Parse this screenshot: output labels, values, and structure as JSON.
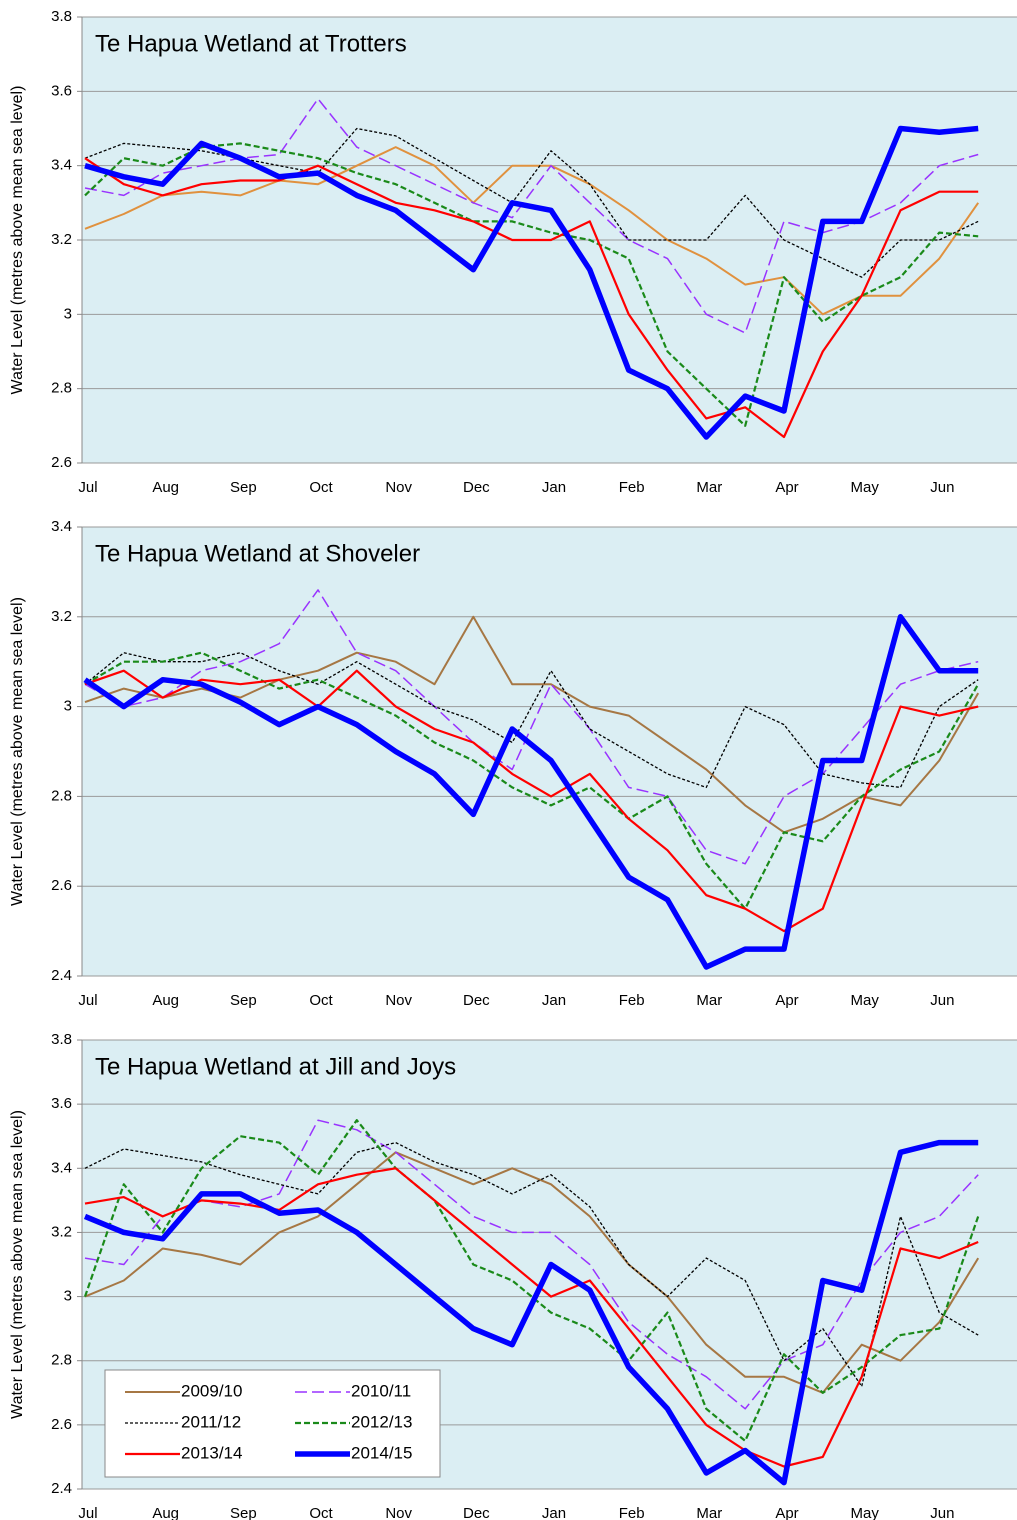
{
  "chart_data": [
    {
      "type": "line",
      "title": "Te Hapua Wetland at Trotters",
      "y_label": "Water Level (metres above mean sea level)",
      "categories": [
        "Jul",
        null,
        "Aug",
        null,
        "Sep",
        null,
        "Oct",
        null,
        "Nov",
        null,
        "Dec",
        null,
        "Jan",
        null,
        "Feb",
        null,
        "Mar",
        null,
        "Apr",
        null,
        "May",
        null,
        "Jun",
        null
      ],
      "ylim": [
        2.6,
        3.8
      ],
      "yticks": [
        2.6,
        2.8,
        3,
        3.2,
        3.4,
        3.6,
        3.8
      ],
      "grid": true,
      "series": [
        {
          "color": "#e0913e",
          "values": [
            3.23,
            3.27,
            3.32,
            3.33,
            3.32,
            3.36,
            3.35,
            3.4,
            3.45,
            3.4,
            3.3,
            3.4,
            3.4,
            3.35,
            3.28,
            3.2,
            3.15,
            3.08,
            3.1,
            3.0,
            3.05,
            3.05,
            3.15,
            3.3
          ]
        },
        {
          "color": "#9933ff",
          "values": [
            3.34,
            3.32,
            3.38,
            3.4,
            3.42,
            3.43,
            3.58,
            3.45,
            3.4,
            3.35,
            3.3,
            3.26,
            3.4,
            3.3,
            3.2,
            3.15,
            3.0,
            2.95,
            3.25,
            3.22,
            3.25,
            3.3,
            3.4,
            3.43
          ]
        },
        {
          "color": "#000000",
          "values": [
            3.42,
            3.46,
            3.45,
            3.44,
            3.42,
            3.4,
            3.38,
            3.5,
            3.48,
            3.42,
            3.36,
            3.3,
            3.44,
            3.35,
            3.2,
            3.2,
            3.2,
            3.32,
            3.2,
            3.15,
            3.1,
            3.2,
            3.2,
            3.25
          ]
        },
        {
          "color": "#1a8a1a",
          "values": [
            3.32,
            3.42,
            3.4,
            3.45,
            3.46,
            3.44,
            3.42,
            3.38,
            3.35,
            3.3,
            3.25,
            3.25,
            3.22,
            3.2,
            3.15,
            2.9,
            2.8,
            2.7,
            3.1,
            2.98,
            3.05,
            3.1,
            3.22,
            3.21
          ]
        },
        {
          "color": "#ff0000",
          "values": [
            3.42,
            3.35,
            3.32,
            3.35,
            3.36,
            3.36,
            3.4,
            3.35,
            3.3,
            3.28,
            3.25,
            3.2,
            3.2,
            3.25,
            3.0,
            2.85,
            2.72,
            2.75,
            2.67,
            2.9,
            3.05,
            3.28,
            3.33,
            3.33
          ]
        },
        {
          "color": "#0000ff",
          "values": [
            3.4,
            3.37,
            3.35,
            3.46,
            3.42,
            3.37,
            3.38,
            3.32,
            3.28,
            3.2,
            3.12,
            3.3,
            3.28,
            3.12,
            2.85,
            2.8,
            2.67,
            2.78,
            2.74,
            3.25,
            3.25,
            3.5,
            3.49,
            3.5
          ]
        }
      ]
    },
    {
      "type": "line",
      "title": "Te Hapua Wetland at Shoveler",
      "y_label": "Water Level (metres above mean sea level)",
      "categories": [
        "Jul",
        null,
        "Aug",
        null,
        "Sep",
        null,
        "Oct",
        null,
        "Nov",
        null,
        "Dec",
        null,
        "Jan",
        null,
        "Feb",
        null,
        "Mar",
        null,
        "Apr",
        null,
        "May",
        null,
        "Jun",
        null
      ],
      "ylim": [
        2.4,
        3.4
      ],
      "yticks": [
        2.4,
        2.6,
        2.8,
        3,
        3.2,
        3.4
      ],
      "grid": true,
      "series": [
        {
          "color": "#a67744",
          "values": [
            3.01,
            3.04,
            3.02,
            3.04,
            3.02,
            3.06,
            3.08,
            3.12,
            3.1,
            3.05,
            3.2,
            3.05,
            3.05,
            3.0,
            2.98,
            2.92,
            2.86,
            2.78,
            2.72,
            2.75,
            2.8,
            2.78,
            2.88,
            3.03
          ]
        },
        {
          "color": "#9933ff",
          "values": [
            3.05,
            3.0,
            3.02,
            3.08,
            3.1,
            3.14,
            3.26,
            3.12,
            3.08,
            3.0,
            2.92,
            2.86,
            3.05,
            2.95,
            2.82,
            2.8,
            2.68,
            2.65,
            2.8,
            2.85,
            2.95,
            3.05,
            3.08,
            3.1
          ]
        },
        {
          "color": "#000000",
          "values": [
            3.05,
            3.12,
            3.1,
            3.1,
            3.12,
            3.08,
            3.05,
            3.1,
            3.05,
            3.0,
            2.97,
            2.92,
            3.08,
            2.95,
            2.9,
            2.85,
            2.82,
            3.0,
            2.96,
            2.85,
            2.83,
            2.82,
            3.0,
            3.06
          ]
        },
        {
          "color": "#1a8a1a",
          "values": [
            3.05,
            3.1,
            3.1,
            3.12,
            3.08,
            3.04,
            3.06,
            3.02,
            2.98,
            2.92,
            2.88,
            2.82,
            2.78,
            2.82,
            2.75,
            2.8,
            2.65,
            2.55,
            2.72,
            2.7,
            2.8,
            2.86,
            2.9,
            3.05
          ]
        },
        {
          "color": "#ff0000",
          "values": [
            3.05,
            3.08,
            3.02,
            3.06,
            3.05,
            3.06,
            3.0,
            3.08,
            3.0,
            2.95,
            2.92,
            2.85,
            2.8,
            2.85,
            2.75,
            2.68,
            2.58,
            2.55,
            2.5,
            2.55,
            2.78,
            3.0,
            2.98,
            3.0
          ]
        },
        {
          "color": "#0000ff",
          "values": [
            3.06,
            3.0,
            3.06,
            3.05,
            3.01,
            2.96,
            3.0,
            2.96,
            2.9,
            2.85,
            2.76,
            2.95,
            2.88,
            2.75,
            2.62,
            2.57,
            2.42,
            2.46,
            2.46,
            2.88,
            2.88,
            3.2,
            3.08,
            3.08
          ]
        }
      ]
    },
    {
      "type": "line",
      "title": "Te Hapua Wetland at Jill and Joys",
      "y_label": "Water Level (metres above mean sea level)",
      "categories": [
        "Jul",
        null,
        "Aug",
        null,
        "Sep",
        null,
        "Oct",
        null,
        "Nov",
        null,
        "Dec",
        null,
        "Jan",
        null,
        "Feb",
        null,
        "Mar",
        null,
        "Apr",
        null,
        "May",
        null,
        "Jun",
        null
      ],
      "ylim": [
        2.4,
        3.8
      ],
      "yticks": [
        2.4,
        2.6,
        2.8,
        3,
        3.2,
        3.4,
        3.6,
        3.8
      ],
      "grid": true,
      "legend": "lower left",
      "series": [
        {
          "name": "2009/10",
          "color": "#a67744",
          "values": [
            3.0,
            3.05,
            3.15,
            3.13,
            3.1,
            3.2,
            3.25,
            3.35,
            3.45,
            3.4,
            3.35,
            3.4,
            3.35,
            3.25,
            3.1,
            3.0,
            2.85,
            2.75,
            2.75,
            2.7,
            2.85,
            2.8,
            2.92,
            3.12
          ]
        },
        {
          "name": "2010/11",
          "color": "#9933ff",
          "values": [
            3.12,
            3.1,
            3.25,
            3.3,
            3.28,
            3.32,
            3.55,
            3.52,
            3.45,
            3.35,
            3.25,
            3.2,
            3.2,
            3.1,
            2.92,
            2.82,
            2.75,
            2.65,
            2.8,
            2.85,
            3.05,
            3.2,
            3.25,
            3.38
          ]
        },
        {
          "name": "2011/12",
          "color": "#000000",
          "values": [
            3.4,
            3.46,
            3.44,
            3.42,
            3.38,
            3.35,
            3.32,
            3.45,
            3.48,
            3.42,
            3.38,
            3.32,
            3.38,
            3.28,
            3.1,
            3.0,
            3.12,
            3.05,
            2.8,
            2.9,
            2.72,
            3.25,
            2.95,
            2.88
          ]
        },
        {
          "name": "2012/13",
          "color": "#1a8a1a",
          "values": [
            3.0,
            3.35,
            3.2,
            3.4,
            3.5,
            3.48,
            3.38,
            3.55,
            3.4,
            3.3,
            3.1,
            3.05,
            2.95,
            2.9,
            2.8,
            2.95,
            2.65,
            2.55,
            2.82,
            2.7,
            2.78,
            2.88,
            2.9,
            3.25
          ]
        },
        {
          "name": "2013/14",
          "color": "#ff0000",
          "values": [
            3.29,
            3.31,
            3.25,
            3.3,
            3.29,
            3.27,
            3.35,
            3.38,
            3.4,
            3.3,
            3.2,
            3.1,
            3.0,
            3.05,
            2.9,
            2.75,
            2.6,
            2.52,
            2.47,
            2.5,
            2.75,
            3.15,
            3.12,
            3.17
          ]
        },
        {
          "name": "2014/15",
          "color": "#0000ff",
          "values": [
            3.25,
            3.2,
            3.18,
            3.32,
            3.32,
            3.26,
            3.27,
            3.2,
            3.1,
            3.0,
            2.9,
            2.85,
            3.1,
            3.02,
            2.78,
            2.65,
            2.45,
            2.52,
            2.42,
            3.05,
            3.02,
            3.45,
            3.48,
            3.48
          ]
        }
      ]
    }
  ]
}
